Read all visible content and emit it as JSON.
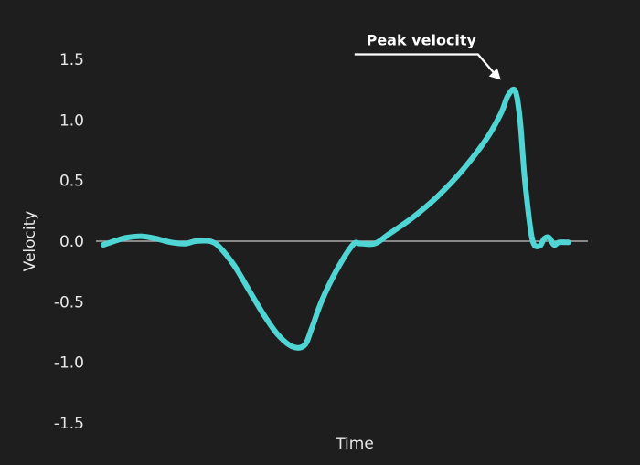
{
  "chart_data": {
    "type": "line",
    "title": "",
    "xlabel": "Time",
    "ylabel": "Velocity",
    "ylim": [
      -1.5,
      1.5
    ],
    "xlim": [
      0,
      100
    ],
    "y_ticks": [
      1.5,
      1.0,
      0.5,
      0.0,
      -0.5,
      -1.0,
      -1.5
    ],
    "y_tick_labels": [
      "1.5",
      "1.0",
      "0.5",
      "0.0",
      "-0.5",
      "-1.0",
      "-1.5"
    ],
    "show_x_ticks": false,
    "grid": false,
    "zero_line": true,
    "series": [
      {
        "color": "#4fd6d4",
        "x": [
          0,
          3,
          5,
          8,
          11,
          14,
          17,
          19,
          22,
          24,
          27,
          30,
          33,
          36,
          39,
          41.5,
          43,
          45,
          48,
          51.5,
          53,
          56,
          59,
          64,
          69,
          74,
          79,
          82,
          83.5,
          85,
          86,
          87,
          88.5,
          90,
          91,
          92,
          93,
          94,
          96
        ],
        "values": [
          -0.03,
          0.01,
          0.03,
          0.04,
          0.02,
          -0.01,
          -0.02,
          0.0,
          0.0,
          -0.05,
          -0.2,
          -0.4,
          -0.6,
          -0.77,
          -0.87,
          -0.86,
          -0.72,
          -0.5,
          -0.25,
          -0.03,
          -0.02,
          -0.02,
          0.06,
          0.2,
          0.37,
          0.58,
          0.84,
          1.05,
          1.2,
          1.24,
          1.0,
          0.5,
          0.02,
          -0.04,
          0.02,
          0.03,
          -0.03,
          -0.01,
          -0.01
        ]
      }
    ],
    "annotation": {
      "text": "Peak velocity",
      "x": 84.3,
      "y": 1.24
    }
  }
}
